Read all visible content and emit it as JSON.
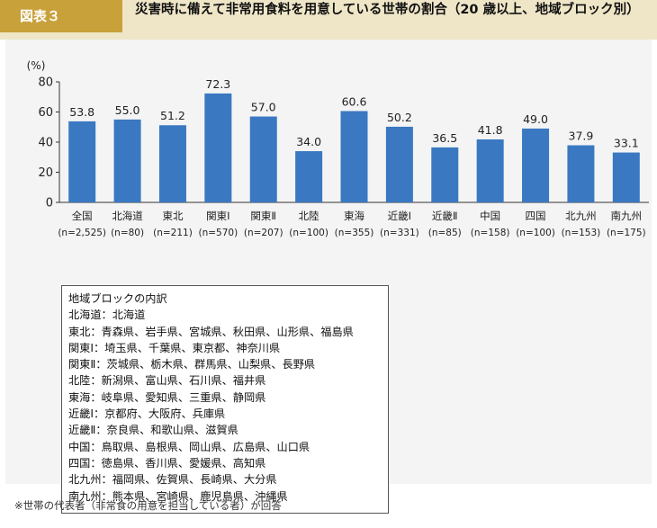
{
  "header": {
    "figure_label": "図表３",
    "title": "災害時に備えて非常用食料を用意している世帯の割合（20 歳以上、地域ブロック別）"
  },
  "chart_data": {
    "type": "bar",
    "title": "",
    "ylabel": "(%)",
    "xlabel": "",
    "ylim": [
      0,
      80
    ],
    "yticks": [
      0,
      20,
      40,
      60,
      80
    ],
    "grid": false,
    "bar_color": "#3a78c2",
    "categories": [
      "全国",
      "北海道",
      "東北",
      "関東Ⅰ",
      "関東Ⅱ",
      "北陸",
      "東海",
      "近畿Ⅰ",
      "近畿Ⅱ",
      "中国",
      "四国",
      "北九州",
      "南九州"
    ],
    "sample_sizes": [
      "(n=2,525)",
      "(n=80)",
      "(n=211)",
      "(n=570)",
      "(n=207)",
      "(n=100)",
      "(n=355)",
      "(n=331)",
      "(n=85)",
      "(n=158)",
      "(n=100)",
      "(n=153)",
      "(n=175)"
    ],
    "values": [
      53.8,
      55.0,
      51.2,
      72.3,
      57.0,
      34.0,
      60.6,
      50.2,
      36.5,
      41.8,
      49.0,
      37.9,
      33.1
    ],
    "value_labels": [
      "53.8",
      "55.0",
      "51.2",
      "72.3",
      "57.0",
      "34.0",
      "60.6",
      "50.2",
      "36.5",
      "41.8",
      "49.0",
      "37.9",
      "33.1"
    ]
  },
  "legend": {
    "title": "地域ブロックの内訳",
    "lines": [
      "北海道：北海道",
      "東北：青森県、岩手県、宮城県、秋田県、山形県、福島県",
      "関東Ⅰ：埼玉県、千葉県、東京都、神奈川県",
      "関東Ⅱ：茨城県、栃木県、群馬県、山梨県、長野県",
      "北陸：新潟県、富山県、石川県、福井県",
      "東海：岐阜県、愛知県、三重県、静岡県",
      "近畿Ⅰ：京都府、大阪府、兵庫県",
      "近畿Ⅱ：奈良県、和歌山県、滋賀県",
      "中国：鳥取県、島根県、岡山県、広島県、山口県",
      "四国：徳島県、香川県、愛媛県、高知県",
      "北九州：福岡県、佐賀県、長崎県、大分県",
      "南九州：熊本県、宮崎県、鹿児島県、沖縄県"
    ]
  },
  "footnote": "※世帯の代表者（非常食の用意を担当している者）が回答"
}
